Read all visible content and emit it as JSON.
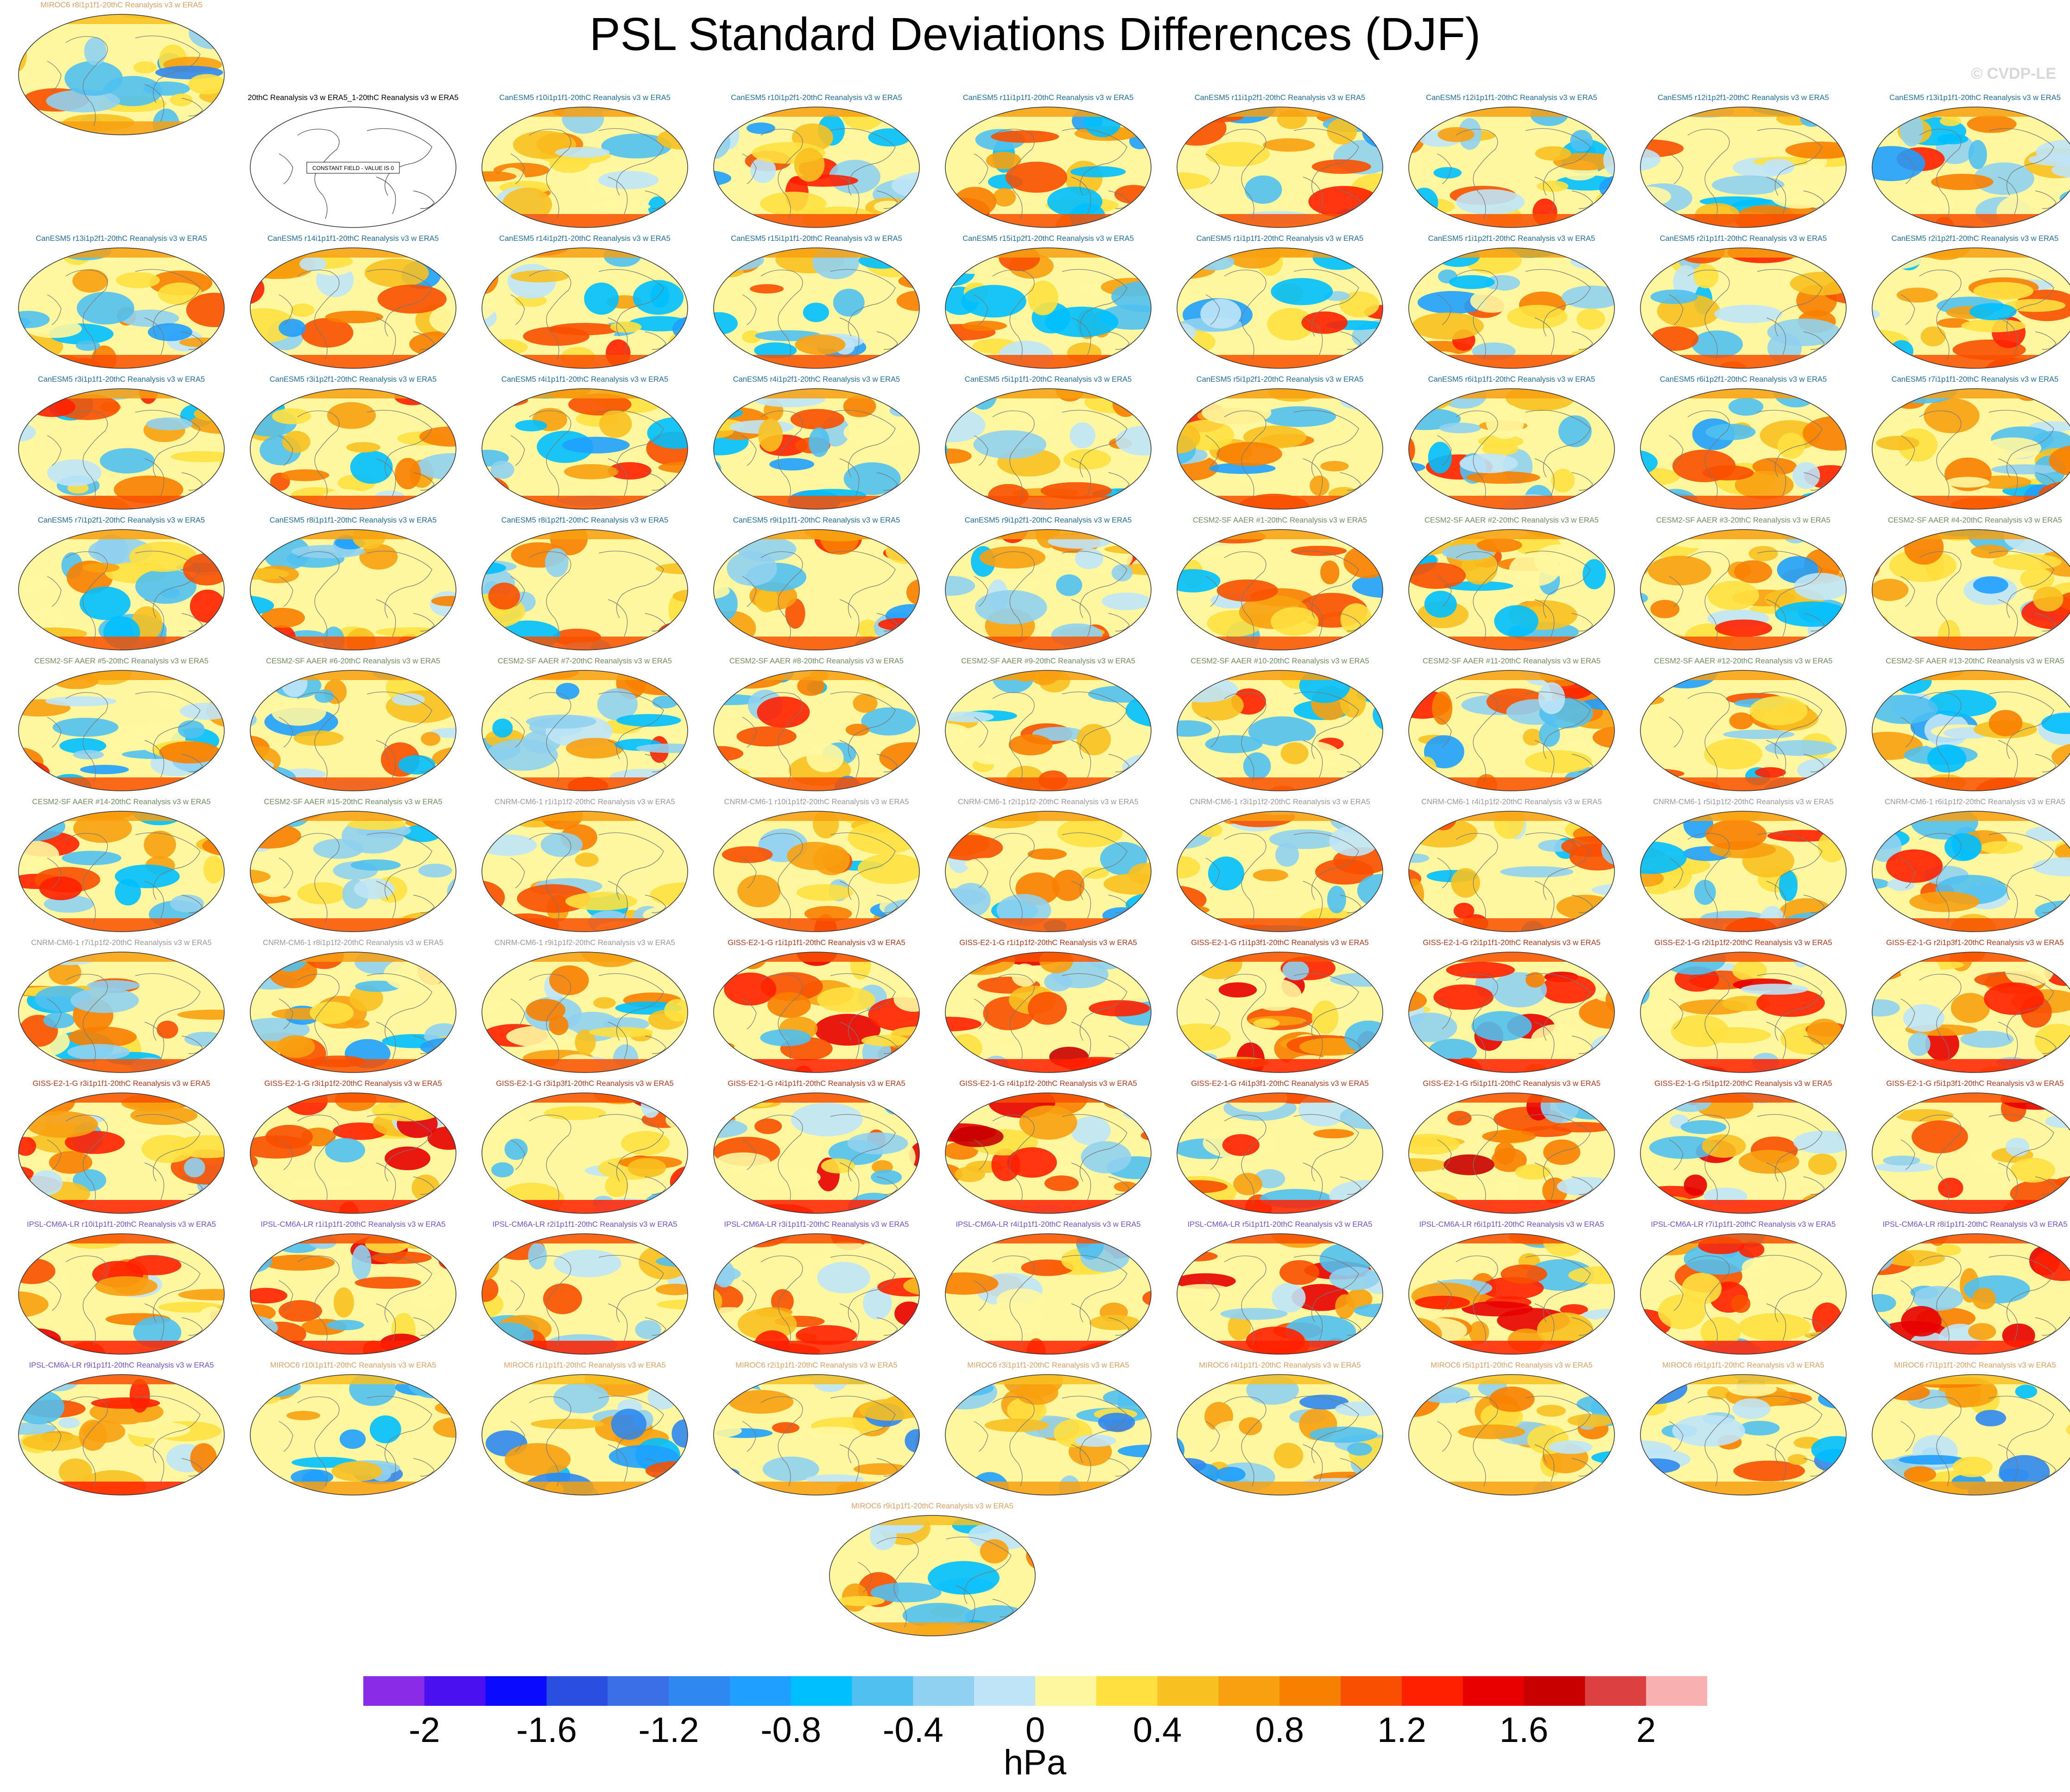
{
  "title": "PSL Standard Deviations Differences (DJF)",
  "credit": "© CVDP-LE",
  "colors": {
    "CanESM5": "#1f6f9f",
    "CESM2-SF AAER": "#6f8f5f",
    "CNRM-CM6-1": "#9a9a9a",
    "GISS-E2-1-G": "#b03a1a",
    "IPSL-CM6A-LR": "#7050d0",
    "MIROC6": "#e0a060",
    "obs": "#000000"
  },
  "chart_data": {
    "type": "heatmap",
    "projection": "robinson",
    "units": "hPa",
    "colorbar": {
      "levels": [
        -2.2,
        -2,
        -1.8,
        -1.6,
        -1.4,
        -1.2,
        -1,
        -0.8,
        -0.6,
        -0.4,
        -0.2,
        0,
        0.2,
        0.4,
        0.6,
        0.8,
        1,
        1.2,
        1.4,
        1.6,
        1.8,
        2,
        2.2
      ],
      "colors": [
        "#8a2be8",
        "#4b10f0",
        "#0a0aff",
        "#2a4fe0",
        "#3a6fe8",
        "#2f88f0",
        "#1f9fff",
        "#00bfff",
        "#50c0f0",
        "#90d0f0",
        "#bfe4f7",
        "#fff7a0",
        "#ffe040",
        "#f8c020",
        "#f8a010",
        "#f88000",
        "#f85000",
        "#ff2000",
        "#e80000",
        "#c80000",
        "#dc4040",
        "#f8b0b0"
      ],
      "tick_labels": [
        "-2",
        "-1.6",
        "-1.2",
        "-0.8",
        "-0.4",
        "0",
        "0.4",
        "0.8",
        "1.2",
        "1.6",
        "2"
      ],
      "label": "hPa"
    },
    "panels": [
      {
        "title": "20thC Reanalysis v3 w ERA5_1-20thC Reanalysis v3 w ERA5",
        "group": "obs",
        "annotation": "CONSTANT FIELD - VALUE IS 0",
        "constant": true
      },
      {
        "title": "CanESM5 r10i1p1f1-20thC Reanalysis v3 w ERA5",
        "group": "CanESM5"
      },
      {
        "title": "CanESM5 r10i1p2f1-20thC Reanalysis v3 w ERA5",
        "group": "CanESM5"
      },
      {
        "title": "CanESM5 r11i1p1f1-20thC Reanalysis v3 w ERA5",
        "group": "CanESM5"
      },
      {
        "title": "CanESM5 r11i1p2f1-20thC Reanalysis v3 w ERA5",
        "group": "CanESM5"
      },
      {
        "title": "CanESM5 r12i1p1f1-20thC Reanalysis v3 w ERA5",
        "group": "CanESM5"
      },
      {
        "title": "CanESM5 r12i1p2f1-20thC Reanalysis v3 w ERA5",
        "group": "CanESM5"
      },
      {
        "title": "CanESM5 r13i1p1f1-20thC Reanalysis v3 w ERA5",
        "group": "CanESM5"
      },
      {
        "title": "CanESM5 r13i1p2f1-20thC Reanalysis v3 w ERA5",
        "group": "CanESM5"
      },
      {
        "title": "CanESM5 r14i1p1f1-20thC Reanalysis v3 w ERA5",
        "group": "CanESM5"
      },
      {
        "title": "CanESM5 r14i1p2f1-20thC Reanalysis v3 w ERA5",
        "group": "CanESM5"
      },
      {
        "title": "CanESM5 r15i1p1f1-20thC Reanalysis v3 w ERA5",
        "group": "CanESM5"
      },
      {
        "title": "CanESM5 r15i1p2f1-20thC Reanalysis v3 w ERA5",
        "group": "CanESM5"
      },
      {
        "title": "CanESM5 r1i1p1f1-20thC Reanalysis v3 w ERA5",
        "group": "CanESM5"
      },
      {
        "title": "CanESM5 r1i1p2f1-20thC Reanalysis v3 w ERA5",
        "group": "CanESM5"
      },
      {
        "title": "CanESM5 r2i1p1f1-20thC Reanalysis v3 w ERA5",
        "group": "CanESM5"
      },
      {
        "title": "CanESM5 r2i1p2f1-20thC Reanalysis v3 w ERA5",
        "group": "CanESM5"
      },
      {
        "title": "CanESM5 r3i1p1f1-20thC Reanalysis v3 w ERA5",
        "group": "CanESM5"
      },
      {
        "title": "CanESM5 r3i1p2f1-20thC Reanalysis v3 w ERA5",
        "group": "CanESM5"
      },
      {
        "title": "CanESM5 r4i1p1f1-20thC Reanalysis v3 w ERA5",
        "group": "CanESM5"
      },
      {
        "title": "CanESM5 r4i1p2f1-20thC Reanalysis v3 w ERA5",
        "group": "CanESM5"
      },
      {
        "title": "CanESM5 r5i1p1f1-20thC Reanalysis v3 w ERA5",
        "group": "CanESM5"
      },
      {
        "title": "CanESM5 r5i1p2f1-20thC Reanalysis v3 w ERA5",
        "group": "CanESM5"
      },
      {
        "title": "CanESM5 r6i1p1f1-20thC Reanalysis v3 w ERA5",
        "group": "CanESM5"
      },
      {
        "title": "CanESM5 r6i1p2f1-20thC Reanalysis v3 w ERA5",
        "group": "CanESM5"
      },
      {
        "title": "CanESM5 r7i1p1f1-20thC Reanalysis v3 w ERA5",
        "group": "CanESM5"
      },
      {
        "title": "CanESM5 r7i1p2f1-20thC Reanalysis v3 w ERA5",
        "group": "CanESM5"
      },
      {
        "title": "CanESM5 r8i1p1f1-20thC Reanalysis v3 w ERA5",
        "group": "CanESM5"
      },
      {
        "title": "CanESM5 r8i1p2f1-20thC Reanalysis v3 w ERA5",
        "group": "CanESM5"
      },
      {
        "title": "CanESM5 r9i1p1f1-20thC Reanalysis v3 w ERA5",
        "group": "CanESM5"
      },
      {
        "title": "CanESM5 r9i1p2f1-20thC Reanalysis v3 w ERA5",
        "group": "CanESM5"
      },
      {
        "title": "CESM2-SF AAER #1-20thC Reanalysis v3 w ERA5",
        "group": "CESM2-SF AAER"
      },
      {
        "title": "CESM2-SF AAER #2-20thC Reanalysis v3 w ERA5",
        "group": "CESM2-SF AAER"
      },
      {
        "title": "CESM2-SF AAER #3-20thC Reanalysis v3 w ERA5",
        "group": "CESM2-SF AAER"
      },
      {
        "title": "CESM2-SF AAER #4-20thC Reanalysis v3 w ERA5",
        "group": "CESM2-SF AAER"
      },
      {
        "title": "CESM2-SF AAER #5-20thC Reanalysis v3 w ERA5",
        "group": "CESM2-SF AAER"
      },
      {
        "title": "CESM2-SF AAER #6-20thC Reanalysis v3 w ERA5",
        "group": "CESM2-SF AAER"
      },
      {
        "title": "CESM2-SF AAER #7-20thC Reanalysis v3 w ERA5",
        "group": "CESM2-SF AAER"
      },
      {
        "title": "CESM2-SF AAER #8-20thC Reanalysis v3 w ERA5",
        "group": "CESM2-SF AAER"
      },
      {
        "title": "CESM2-SF AAER #9-20thC Reanalysis v3 w ERA5",
        "group": "CESM2-SF AAER"
      },
      {
        "title": "CESM2-SF AAER #10-20thC Reanalysis v3 w ERA5",
        "group": "CESM2-SF AAER"
      },
      {
        "title": "CESM2-SF AAER #11-20thC Reanalysis v3 w ERA5",
        "group": "CESM2-SF AAER"
      },
      {
        "title": "CESM2-SF AAER #12-20thC Reanalysis v3 w ERA5",
        "group": "CESM2-SF AAER"
      },
      {
        "title": "CESM2-SF AAER #13-20thC Reanalysis v3 w ERA5",
        "group": "CESM2-SF AAER"
      },
      {
        "title": "CESM2-SF AAER #14-20thC Reanalysis v3 w ERA5",
        "group": "CESM2-SF AAER"
      },
      {
        "title": "CESM2-SF AAER #15-20thC Reanalysis v3 w ERA5",
        "group": "CESM2-SF AAER"
      },
      {
        "title": "CNRM-CM6-1 r1i1p1f2-20thC Reanalysis v3 w ERA5",
        "group": "CNRM-CM6-1"
      },
      {
        "title": "CNRM-CM6-1 r10i1p1f2-20thC Reanalysis v3 w ERA5",
        "group": "CNRM-CM6-1"
      },
      {
        "title": "CNRM-CM6-1 r2i1p1f2-20thC Reanalysis v3 w ERA5",
        "group": "CNRM-CM6-1"
      },
      {
        "title": "CNRM-CM6-1 r3i1p1f2-20thC Reanalysis v3 w ERA5",
        "group": "CNRM-CM6-1"
      },
      {
        "title": "CNRM-CM6-1 r4i1p1f2-20thC Reanalysis v3 w ERA5",
        "group": "CNRM-CM6-1"
      },
      {
        "title": "CNRM-CM6-1 r5i1p1f2-20thC Reanalysis v3 w ERA5",
        "group": "CNRM-CM6-1"
      },
      {
        "title": "CNRM-CM6-1 r6i1p1f2-20thC Reanalysis v3 w ERA5",
        "group": "CNRM-CM6-1"
      },
      {
        "title": "CNRM-CM6-1 r7i1p1f2-20thC Reanalysis v3 w ERA5",
        "group": "CNRM-CM6-1"
      },
      {
        "title": "CNRM-CM6-1 r8i1p1f2-20thC Reanalysis v3 w ERA5",
        "group": "CNRM-CM6-1"
      },
      {
        "title": "CNRM-CM6-1 r9i1p1f2-20thC Reanalysis v3 w ERA5",
        "group": "CNRM-CM6-1"
      },
      {
        "title": "GISS-E2-1-G r1i1p1f1-20thC Reanalysis v3 w ERA5",
        "group": "GISS-E2-1-G"
      },
      {
        "title": "GISS-E2-1-G r1i1p1f2-20thC Reanalysis v3 w ERA5",
        "group": "GISS-E2-1-G"
      },
      {
        "title": "GISS-E2-1-G r1i1p3f1-20thC Reanalysis v3 w ERA5",
        "group": "GISS-E2-1-G"
      },
      {
        "title": "GISS-E2-1-G r2i1p1f1-20thC Reanalysis v3 w ERA5",
        "group": "GISS-E2-1-G"
      },
      {
        "title": "GISS-E2-1-G r2i1p1f2-20thC Reanalysis v3 w ERA5",
        "group": "GISS-E2-1-G"
      },
      {
        "title": "GISS-E2-1-G r2i1p3f1-20thC Reanalysis v3 w ERA5",
        "group": "GISS-E2-1-G"
      },
      {
        "title": "GISS-E2-1-G r3i1p1f1-20thC Reanalysis v3 w ERA5",
        "group": "GISS-E2-1-G"
      },
      {
        "title": "GISS-E2-1-G r3i1p1f2-20thC Reanalysis v3 w ERA5",
        "group": "GISS-E2-1-G"
      },
      {
        "title": "GISS-E2-1-G r3i1p3f1-20thC Reanalysis v3 w ERA5",
        "group": "GISS-E2-1-G"
      },
      {
        "title": "GISS-E2-1-G r4i1p1f1-20thC Reanalysis v3 w ERA5",
        "group": "GISS-E2-1-G"
      },
      {
        "title": "GISS-E2-1-G r4i1p1f2-20thC Reanalysis v3 w ERA5",
        "group": "GISS-E2-1-G"
      },
      {
        "title": "GISS-E2-1-G r4i1p3f1-20thC Reanalysis v3 w ERA5",
        "group": "GISS-E2-1-G"
      },
      {
        "title": "GISS-E2-1-G r5i1p1f1-20thC Reanalysis v3 w ERA5",
        "group": "GISS-E2-1-G"
      },
      {
        "title": "GISS-E2-1-G r5i1p1f2-20thC Reanalysis v3 w ERA5",
        "group": "GISS-E2-1-G"
      },
      {
        "title": "GISS-E2-1-G r5i1p3f1-20thC Reanalysis v3 w ERA5",
        "group": "GISS-E2-1-G"
      },
      {
        "title": "IPSL-CM6A-LR r10i1p1f1-20thC Reanalysis v3 w ERA5",
        "group": "IPSL-CM6A-LR"
      },
      {
        "title": "IPSL-CM6A-LR r1i1p1f1-20thC Reanalysis v3 w ERA5",
        "group": "IPSL-CM6A-LR"
      },
      {
        "title": "IPSL-CM6A-LR r2i1p1f1-20thC Reanalysis v3 w ERA5",
        "group": "IPSL-CM6A-LR"
      },
      {
        "title": "IPSL-CM6A-LR r3i1p1f1-20thC Reanalysis v3 w ERA5",
        "group": "IPSL-CM6A-LR"
      },
      {
        "title": "IPSL-CM6A-LR r4i1p1f1-20thC Reanalysis v3 w ERA5",
        "group": "IPSL-CM6A-LR"
      },
      {
        "title": "IPSL-CM6A-LR r5i1p1f1-20thC Reanalysis v3 w ERA5",
        "group": "IPSL-CM6A-LR"
      },
      {
        "title": "IPSL-CM6A-LR r6i1p1f1-20thC Reanalysis v3 w ERA5",
        "group": "IPSL-CM6A-LR"
      },
      {
        "title": "IPSL-CM6A-LR r7i1p1f1-20thC Reanalysis v3 w ERA5",
        "group": "IPSL-CM6A-LR"
      },
      {
        "title": "IPSL-CM6A-LR r8i1p1f1-20thC Reanalysis v3 w ERA5",
        "group": "IPSL-CM6A-LR"
      },
      {
        "title": "IPSL-CM6A-LR r9i1p1f1-20thC Reanalysis v3 w ERA5",
        "group": "IPSL-CM6A-LR"
      },
      {
        "title": "MIROC6 r10i1p1f1-20thC Reanalysis v3 w ERA5",
        "group": "MIROC6"
      },
      {
        "title": "MIROC6 r1i1p1f1-20thC Reanalysis v3 w ERA5",
        "group": "MIROC6"
      },
      {
        "title": "MIROC6 r2i1p1f1-20thC Reanalysis v3 w ERA5",
        "group": "MIROC6"
      },
      {
        "title": "MIROC6 r3i1p1f1-20thC Reanalysis v3 w ERA5",
        "group": "MIROC6"
      },
      {
        "title": "MIROC6 r4i1p1f1-20thC Reanalysis v3 w ERA5",
        "group": "MIROC6"
      },
      {
        "title": "MIROC6 r5i1p1f1-20thC Reanalysis v3 w ERA5",
        "group": "MIROC6"
      },
      {
        "title": "MIROC6 r6i1p1f1-20thC Reanalysis v3 w ERA5",
        "group": "MIROC6"
      },
      {
        "title": "MIROC6 r7i1p1f1-20thC Reanalysis v3 w ERA5",
        "group": "MIROC6"
      },
      {
        "title": "MIROC6 r8i1p1f1-20thC Reanalysis v3 w ERA5",
        "group": "MIROC6"
      },
      {
        "title": "MIROC6 r9i1p1f1-20thC Reanalysis v3 w ERA5",
        "group": "MIROC6"
      }
    ]
  }
}
